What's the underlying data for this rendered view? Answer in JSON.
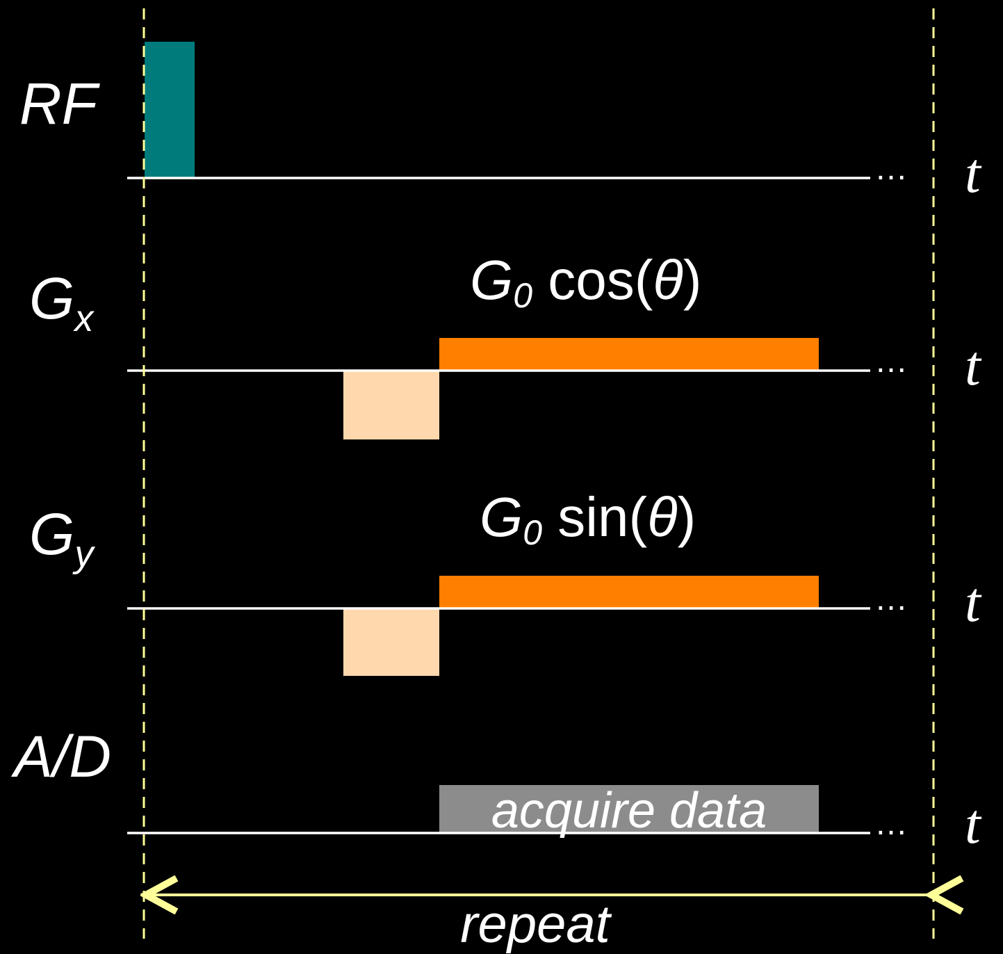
{
  "rows": {
    "rf": {
      "label": "RF",
      "axis": "t",
      "ellipsis": "…"
    },
    "gx": {
      "label_main": "G",
      "label_sub": "x",
      "axis": "t",
      "ellipsis": "…",
      "annotation_g": "G",
      "annotation_sub": "0",
      "annotation_func": " cos(",
      "annotation_theta": "θ",
      "annotation_close": ")"
    },
    "gy": {
      "label_main": "G",
      "label_sub": "y",
      "axis": "t",
      "ellipsis": "…",
      "annotation_g": "G",
      "annotation_sub": "0",
      "annotation_func": " sin(",
      "annotation_theta": "θ",
      "annotation_close": ")"
    },
    "ad": {
      "label": "A/D",
      "axis": "t",
      "ellipsis": "…",
      "block_label": "acquire data"
    }
  },
  "repeat_label": "repeat",
  "colors": {
    "background": "#000000",
    "rf_pulse": "#007b7b",
    "readout_gradient": "#ff7f00",
    "prephase_gradient": "#ffd8ad",
    "acquire_block": "#8c8c8c",
    "guide_lines": "#ffff99",
    "axes": "#ffffff"
  }
}
